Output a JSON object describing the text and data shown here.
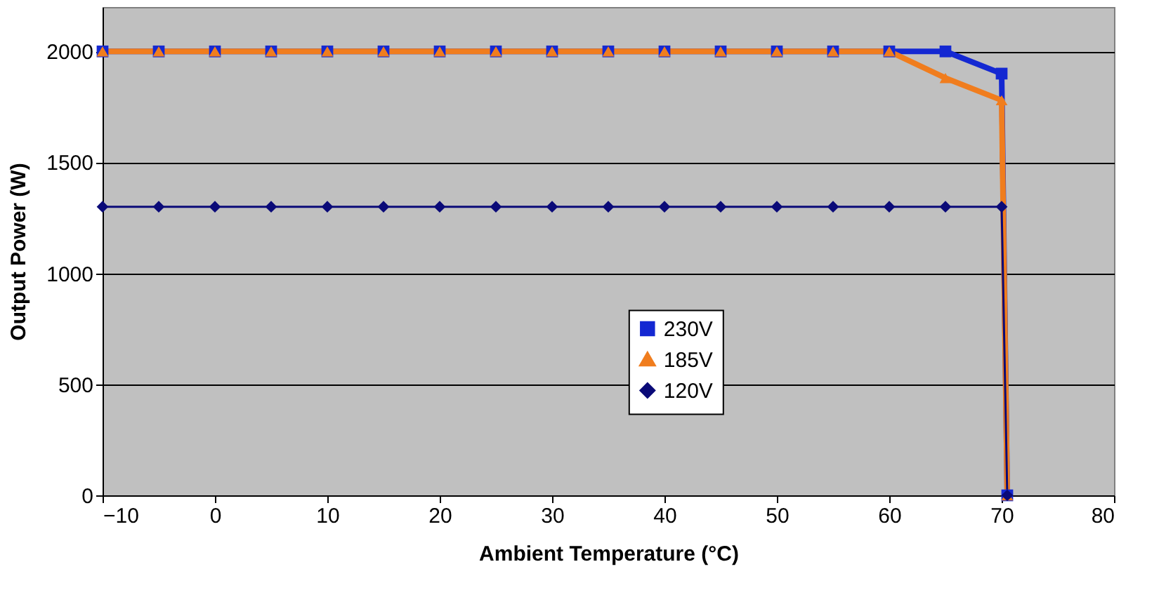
{
  "chart_data": {
    "type": "line",
    "xlabel": "Ambient Temperature (°C)",
    "ylabel": "Output Power (W)",
    "xlim": [
      -10,
      80
    ],
    "xticks": [
      -10,
      0,
      10,
      20,
      30,
      40,
      50,
      60,
      70,
      80
    ],
    "ylim": [
      0,
      2200
    ],
    "yticks": [
      0,
      500,
      1000,
      1500,
      2000
    ],
    "grid": "y",
    "legend": "bottom right",
    "series": [
      {
        "name": "230V",
        "color": "#1428d2",
        "marker": "square",
        "x": [
          -10,
          -5,
          0,
          5,
          10,
          15,
          20,
          25,
          30,
          35,
          40,
          45,
          50,
          55,
          60,
          65,
          70,
          70.5
        ],
        "values": [
          2000,
          2000,
          2000,
          2000,
          2000,
          2000,
          2000,
          2000,
          2000,
          2000,
          2000,
          2000,
          2000,
          2000,
          2000,
          2000,
          1900,
          0
        ]
      },
      {
        "name": "185V",
        "color": "#f07d1e",
        "marker": "triangle",
        "x": [
          -10,
          -5,
          0,
          5,
          10,
          15,
          20,
          25,
          30,
          35,
          40,
          45,
          50,
          55,
          60,
          65,
          70,
          70.5
        ],
        "values": [
          2000,
          2000,
          2000,
          2000,
          2000,
          2000,
          2000,
          2000,
          2000,
          2000,
          2000,
          2000,
          2000,
          2000,
          2000,
          1880,
          1780,
          0
        ]
      },
      {
        "name": "120V",
        "color": "#0a0a78",
        "marker": "diamond",
        "x": [
          -10,
          -5,
          0,
          5,
          10,
          15,
          20,
          25,
          30,
          35,
          40,
          45,
          50,
          55,
          60,
          65,
          70,
          70.5
        ],
        "values": [
          1300,
          1300,
          1300,
          1300,
          1300,
          1300,
          1300,
          1300,
          1300,
          1300,
          1300,
          1300,
          1300,
          1300,
          1300,
          1300,
          1300,
          0
        ]
      }
    ]
  }
}
